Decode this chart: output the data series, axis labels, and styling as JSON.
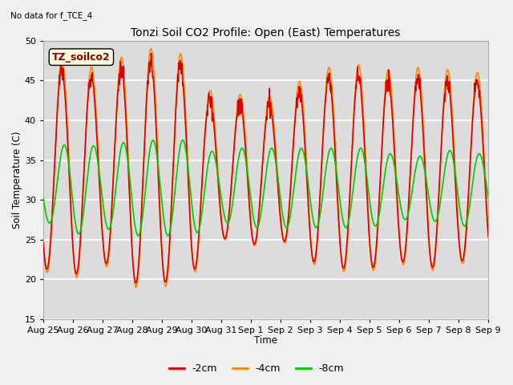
{
  "title": "Tonzi Soil CO2 Profile: Open (East) Temperatures",
  "subtitle": "No data for f_TCE_4",
  "ylabel": "Soil Temperature (C)",
  "xlabel": "Time",
  "legend_label": "TZ_soilco2",
  "ylim": [
    15,
    50
  ],
  "series_labels": [
    "-2cm",
    "-4cm",
    "-8cm"
  ],
  "series_colors": [
    "#dd0000",
    "#ff8800",
    "#00cc00"
  ],
  "x_tick_labels": [
    "Aug 25",
    "Aug 26",
    "Aug 27",
    "Aug 28",
    "Aug 29",
    "Aug 30",
    "Aug 31",
    "Sep 1",
    "Sep 2",
    "Sep 3",
    "Sep 4",
    "Sep 5",
    "Sep 6",
    "Sep 7",
    "Sep 8",
    "Sep 9"
  ],
  "background_color": "#dcdcdc",
  "plot_bg_color": "#dcdcdc",
  "line_width": 1.2,
  "figsize": [
    6.4,
    4.8
  ],
  "dpi": 100
}
